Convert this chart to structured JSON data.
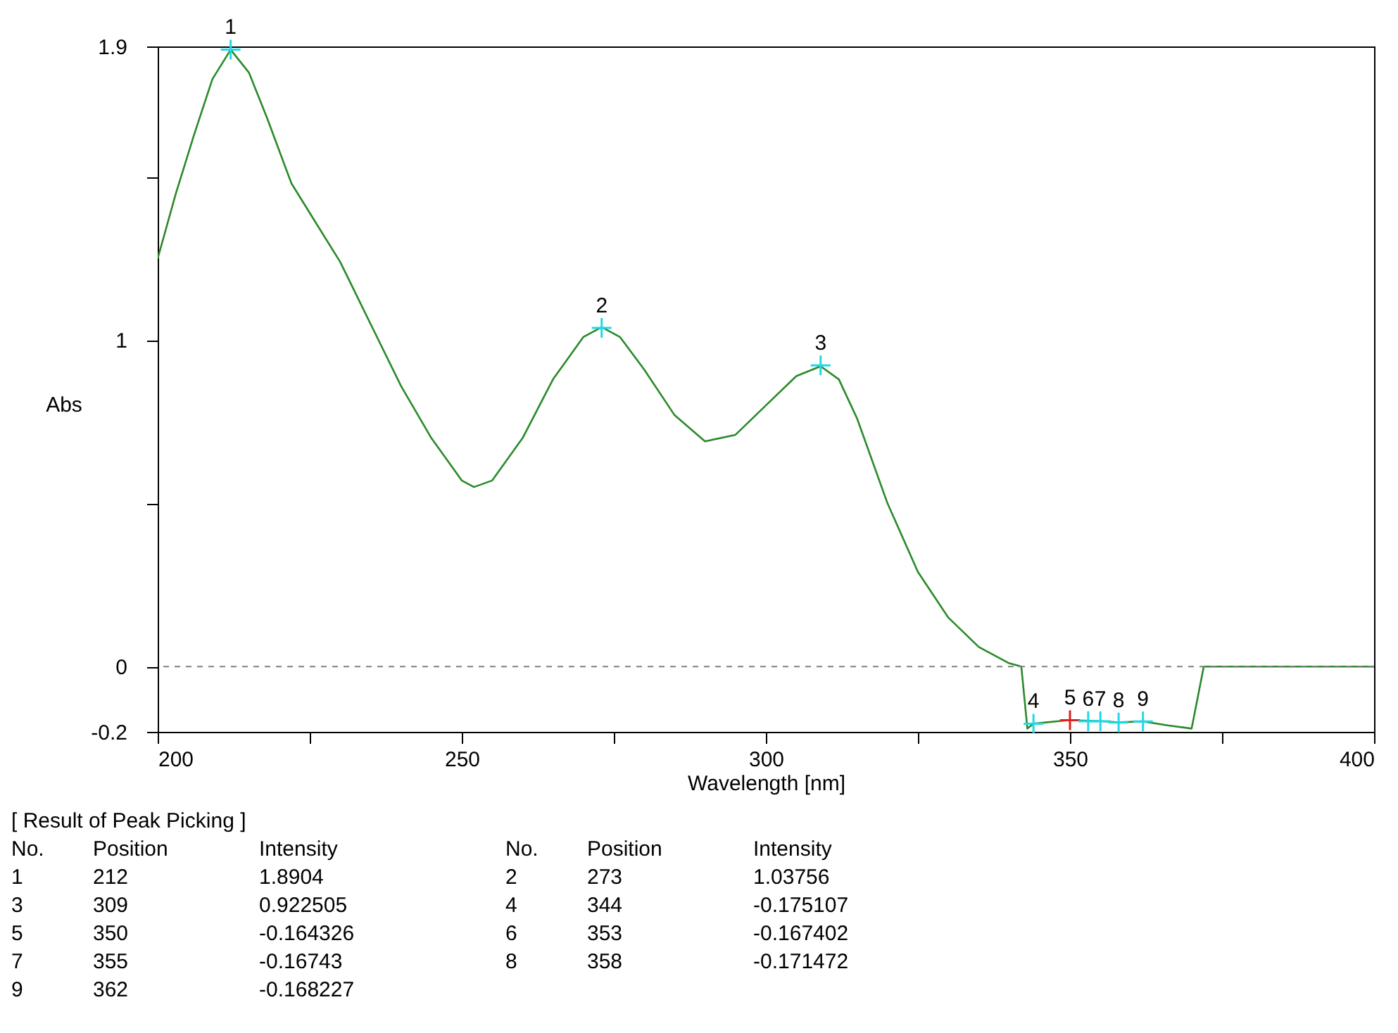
{
  "chart_data": {
    "type": "line",
    "xlabel": "Wavelength [nm]",
    "ylabel": "Abs",
    "x": [
      200,
      203,
      206,
      209,
      212,
      215,
      218,
      222,
      226,
      230,
      235,
      240,
      245,
      250,
      252,
      255,
      260,
      265,
      270,
      273,
      276,
      280,
      285,
      290,
      295,
      300,
      305,
      309,
      312,
      315,
      320,
      325,
      330,
      335,
      340,
      342,
      343,
      344,
      350,
      355,
      358,
      362,
      366,
      370,
      372,
      380,
      390,
      400
    ],
    "series": [
      {
        "color": "#2a8a2a",
        "values": [
          1.25,
          1.45,
          1.63,
          1.8,
          1.89,
          1.82,
          1.68,
          1.48,
          1.36,
          1.24,
          1.05,
          0.86,
          0.7,
          0.57,
          0.55,
          0.57,
          0.7,
          0.88,
          1.01,
          1.04,
          1.01,
          0.91,
          0.77,
          0.69,
          0.71,
          0.8,
          0.89,
          0.92,
          0.88,
          0.76,
          0.5,
          0.29,
          0.15,
          0.06,
          0.01,
          0,
          -0.19,
          -0.175,
          -0.164,
          -0.167,
          -0.171,
          -0.168,
          -0.18,
          -0.19,
          0,
          0,
          0,
          0
        ]
      },
      {
        "type": "scatter",
        "marker": "cross",
        "x": [
          212,
          273,
          309,
          344,
          350,
          353,
          355,
          358,
          362
        ],
        "values": [
          1.8904,
          1.03756,
          0.922505,
          -0.175107,
          -0.164326,
          -0.167402,
          -0.16743,
          -0.171472,
          -0.168227
        ],
        "colors": [
          "#22d8e8",
          "#22d8e8",
          "#22d8e8",
          "#22d8e8",
          "#e02020",
          "#22d8e8",
          "#22d8e8",
          "#22d8e8",
          "#22d8e8"
        ]
      }
    ],
    "xlim": [
      200,
      400
    ],
    "xticks": [
      200,
      {
        "value": 225,
        "label": null
      },
      250,
      {
        "value": 275,
        "label": null
      },
      300,
      {
        "value": 325,
        "label": null
      },
      350,
      {
        "value": 375,
        "label": null
      },
      400
    ],
    "ylim": [
      -0.2,
      1.9
    ],
    "yticks": [
      -0.2,
      0,
      {
        "value": 0.5,
        "label": null
      },
      1,
      {
        "value": 1.5,
        "label": null
      },
      1.9
    ],
    "marker": "none",
    "line_style": "solid",
    "ref_lines": [
      {
        "axis": "y",
        "value": 0,
        "label": null,
        "color": "#808080",
        "line_style": "dashed"
      }
    ],
    "annotations": [
      {
        "text": "1",
        "x": 212,
        "y": 1.8904
      },
      {
        "text": "2",
        "x": 273,
        "y": 1.03756
      },
      {
        "text": "3",
        "x": 309,
        "y": 0.922505
      },
      {
        "text": "4",
        "x": 344,
        "y": -0.175107
      },
      {
        "text": "5",
        "x": 350,
        "y": -0.164326
      },
      {
        "text": "6",
        "x": 353,
        "y": -0.167402
      },
      {
        "text": "7",
        "x": 355,
        "y": -0.16743
      },
      {
        "text": "8",
        "x": 358,
        "y": -0.171472
      },
      {
        "text": "9",
        "x": 362,
        "y": -0.168227
      },
      "[ Result of Peak Picking ]",
      "No.\tPosition\tIntensity\tNo.\tPosition\tIntensity",
      "1\t212\t1.8904\t2\t273\t1.03756",
      "3\t309\t0.922505\t4\t344\t-0.175107",
      "5\t350\t-0.164326\t6\t353\t-0.167402",
      "7\t355\t-0.16743\t8\t358\t-0.171472",
      "9\t362\t-0.168227"
    ]
  }
}
